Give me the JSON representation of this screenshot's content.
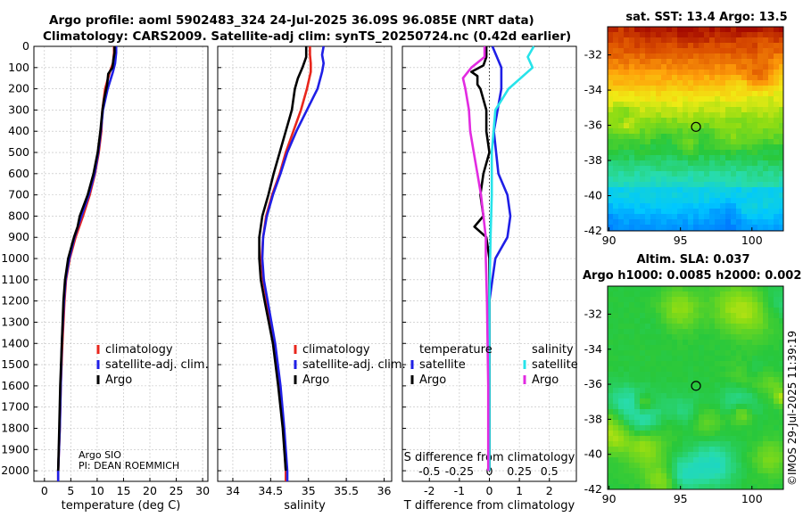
{
  "header": {
    "line1": "Argo profile: aoml 5902483_324 24-Jul-2025 36.09S 96.085E (NRT data)",
    "line2": "Climatology: CARS2009. Satellite-adj clim: synTS_20250724.nc (0.42d earlier)"
  },
  "footer": {
    "argo_sio": "Argo SIO",
    "pi": "PI: DEAN ROEMMICH",
    "imos": "©IMOS 29-Jul-2025 11:39:19"
  },
  "colors": {
    "climatology": "#e8261c",
    "satellite": "#1f1fe6",
    "argo": "#000000",
    "sat_sal": "#27e3ea",
    "argo_sal": "#e22be1"
  },
  "chart_data": [
    {
      "type": "line",
      "id": "temperature",
      "xlabel": "temperature (deg C)",
      "ylabel": "",
      "xlim": [
        -2,
        31
      ],
      "ylim": [
        2050,
        0
      ],
      "xticks": [
        0,
        5,
        10,
        15,
        20,
        25,
        30
      ],
      "yticks": [
        0,
        100,
        200,
        300,
        400,
        500,
        600,
        700,
        800,
        900,
        1000,
        1100,
        1200,
        1300,
        1400,
        1500,
        1600,
        1700,
        1800,
        1900,
        2000
      ],
      "legend": [
        "climatology",
        "satellite-adj. clim.",
        "Argo"
      ],
      "series": [
        {
          "name": "climatology",
          "depth": [
            0,
            30,
            80,
            120,
            200,
            300,
            400,
            500,
            600,
            700,
            800,
            900,
            1000,
            1100,
            1200,
            1400,
            1600,
            1800,
            2000,
            2050
          ],
          "values": [
            13.2,
            13.2,
            13.0,
            12.4,
            11.5,
            11.0,
            10.8,
            10.3,
            9.6,
            8.6,
            7.3,
            5.9,
            4.8,
            4.1,
            3.8,
            3.4,
            3.1,
            2.9,
            2.6,
            2.6
          ]
        },
        {
          "name": "satellite-adj. clim.",
          "depth": [
            0,
            30,
            80,
            120,
            200,
            300,
            400,
            500,
            600,
            700,
            800,
            900,
            1000,
            1100,
            1200,
            1400,
            1600,
            1800,
            2000,
            2050
          ],
          "values": [
            13.6,
            13.6,
            13.4,
            13.0,
            12.0,
            11.1,
            10.7,
            10.2,
            9.5,
            8.4,
            7.0,
            5.7,
            4.7,
            4.0,
            3.7,
            3.3,
            3.1,
            2.9,
            2.6,
            2.6
          ]
        },
        {
          "name": "Argo",
          "depth": [
            0,
            30,
            60,
            100,
            130,
            180,
            250,
            300,
            400,
            500,
            600,
            700,
            800,
            850,
            900,
            1000,
            1100,
            1200,
            1400,
            1600,
            1800,
            2000
          ],
          "values": [
            13.3,
            13.3,
            13.1,
            12.9,
            12.1,
            11.9,
            11.3,
            11.0,
            10.6,
            10.1,
            9.3,
            8.2,
            6.7,
            6.3,
            5.6,
            4.5,
            3.9,
            3.6,
            3.3,
            3.0,
            2.8,
            2.6
          ]
        }
      ]
    },
    {
      "type": "line",
      "id": "salinity",
      "xlabel": "salinity",
      "xlim": [
        33.8,
        36.1
      ],
      "ylim": [
        2050,
        0
      ],
      "xticks": [
        34,
        34.5,
        35,
        35.5,
        36
      ],
      "legend": [
        "climatology",
        "satellite-adj. clim.",
        "Argo"
      ],
      "series": [
        {
          "name": "climatology",
          "depth": [
            0,
            40,
            80,
            120,
            200,
            300,
            400,
            500,
            600,
            700,
            800,
            900,
            1000,
            1100,
            1200,
            1400,
            1600,
            1800,
            2000,
            2050
          ],
          "values": [
            35.02,
            35.02,
            35.03,
            35.03,
            34.98,
            34.9,
            34.8,
            34.7,
            34.62,
            34.52,
            34.44,
            34.4,
            34.38,
            34.4,
            34.45,
            34.55,
            34.62,
            34.67,
            34.7,
            34.7
          ]
        },
        {
          "name": "satellite-adj. clim.",
          "depth": [
            0,
            40,
            80,
            120,
            200,
            300,
            400,
            500,
            600,
            700,
            800,
            900,
            1000,
            1100,
            1200,
            1400,
            1600,
            1800,
            2000,
            2050
          ],
          "values": [
            35.2,
            35.18,
            35.2,
            35.18,
            35.12,
            34.98,
            34.84,
            34.72,
            34.63,
            34.53,
            34.45,
            34.4,
            34.39,
            34.41,
            34.46,
            34.56,
            34.63,
            34.68,
            34.72,
            34.72
          ]
        },
        {
          "name": "Argo",
          "depth": [
            0,
            50,
            100,
            150,
            200,
            300,
            400,
            500,
            600,
            700,
            800,
            900,
            1000,
            1100,
            1200,
            1400,
            1600,
            1800,
            2000
          ],
          "values": [
            34.97,
            34.97,
            34.92,
            34.86,
            34.82,
            34.78,
            34.7,
            34.62,
            34.54,
            34.47,
            34.39,
            34.35,
            34.35,
            34.37,
            34.42,
            34.53,
            34.6,
            34.66,
            34.7
          ]
        }
      ]
    },
    {
      "type": "line",
      "id": "difference",
      "xlabel": "T difference from climatology",
      "x2label": "S difference from climatology",
      "xlim": [
        -2.9,
        2.9
      ],
      "ylim": [
        2050,
        0
      ],
      "xticks": [
        -2,
        -1,
        0,
        1,
        2
      ],
      "x2ticks": [
        -0.5,
        -0.25,
        0,
        0.25,
        0.5
      ],
      "legend_title_t": "temperature",
      "legend_title_s": "salinity",
      "legend": [
        "satellite",
        "Argo",
        "satellite",
        "Argo"
      ],
      "series": [
        {
          "name": "T satellite",
          "depth": [
            0,
            100,
            200,
            400,
            600,
            700,
            800,
            900,
            1000,
            1200,
            1600,
            2000
          ],
          "values": [
            0.1,
            0.4,
            0.4,
            0.15,
            0.3,
            0.6,
            0.7,
            0.6,
            0.2,
            0.0,
            0.0,
            0.0
          ]
        },
        {
          "name": "T Argo",
          "depth": [
            0,
            50,
            90,
            120,
            140,
            160,
            180,
            200,
            300,
            400,
            500,
            600,
            700,
            800,
            850,
            900,
            1000,
            1200,
            1600,
            2000
          ],
          "values": [
            -0.1,
            -0.1,
            -0.2,
            -0.6,
            -0.4,
            -0.4,
            -0.4,
            -0.3,
            -0.1,
            -0.1,
            0.0,
            -0.2,
            -0.3,
            -0.2,
            -0.5,
            -0.1,
            0.0,
            0.0,
            0.0,
            0.0
          ]
        },
        {
          "name": "S satellite",
          "depth": [
            0,
            50,
            100,
            200,
            300,
            500,
            700,
            900,
            1200,
            1600,
            2000
          ],
          "values": [
            0.37,
            0.32,
            0.36,
            0.16,
            0.05,
            0.02,
            0.02,
            0.01,
            0.0,
            0.0,
            0.0
          ]
        },
        {
          "name": "S Argo",
          "depth": [
            0,
            50,
            100,
            150,
            200,
            300,
            400,
            500,
            600,
            700,
            800,
            900,
            1000,
            1200,
            1600,
            2000
          ],
          "values": [
            -0.04,
            -0.04,
            -0.15,
            -0.22,
            -0.2,
            -0.17,
            -0.16,
            -0.13,
            -0.1,
            -0.07,
            -0.05,
            -0.03,
            -0.03,
            -0.02,
            -0.01,
            -0.01
          ]
        }
      ]
    },
    {
      "type": "heatmap",
      "id": "sst",
      "title": "sat. SST: 13.4 Argo: 13.5",
      "xlim": [
        89.9,
        102.2
      ],
      "ylim": [
        -42,
        -30.4
      ],
      "xticks": [
        90,
        95,
        100
      ],
      "yticks": [
        -32,
        -34,
        -36,
        -38,
        -40,
        -42
      ],
      "marker": [
        96.085,
        -36.09
      ]
    },
    {
      "type": "heatmap",
      "id": "sla",
      "title": "Altim. SLA: 0.037",
      "subtitle": "Argo h1000: 0.0085 h2000: 0.002",
      "xlim": [
        89.9,
        102.2
      ],
      "ylim": [
        -42,
        -30.4
      ],
      "xticks": [
        90,
        95,
        100
      ],
      "yticks": [
        -32,
        -34,
        -36,
        -38,
        -40,
        -42
      ],
      "marker": [
        96.085,
        -36.09
      ]
    }
  ]
}
